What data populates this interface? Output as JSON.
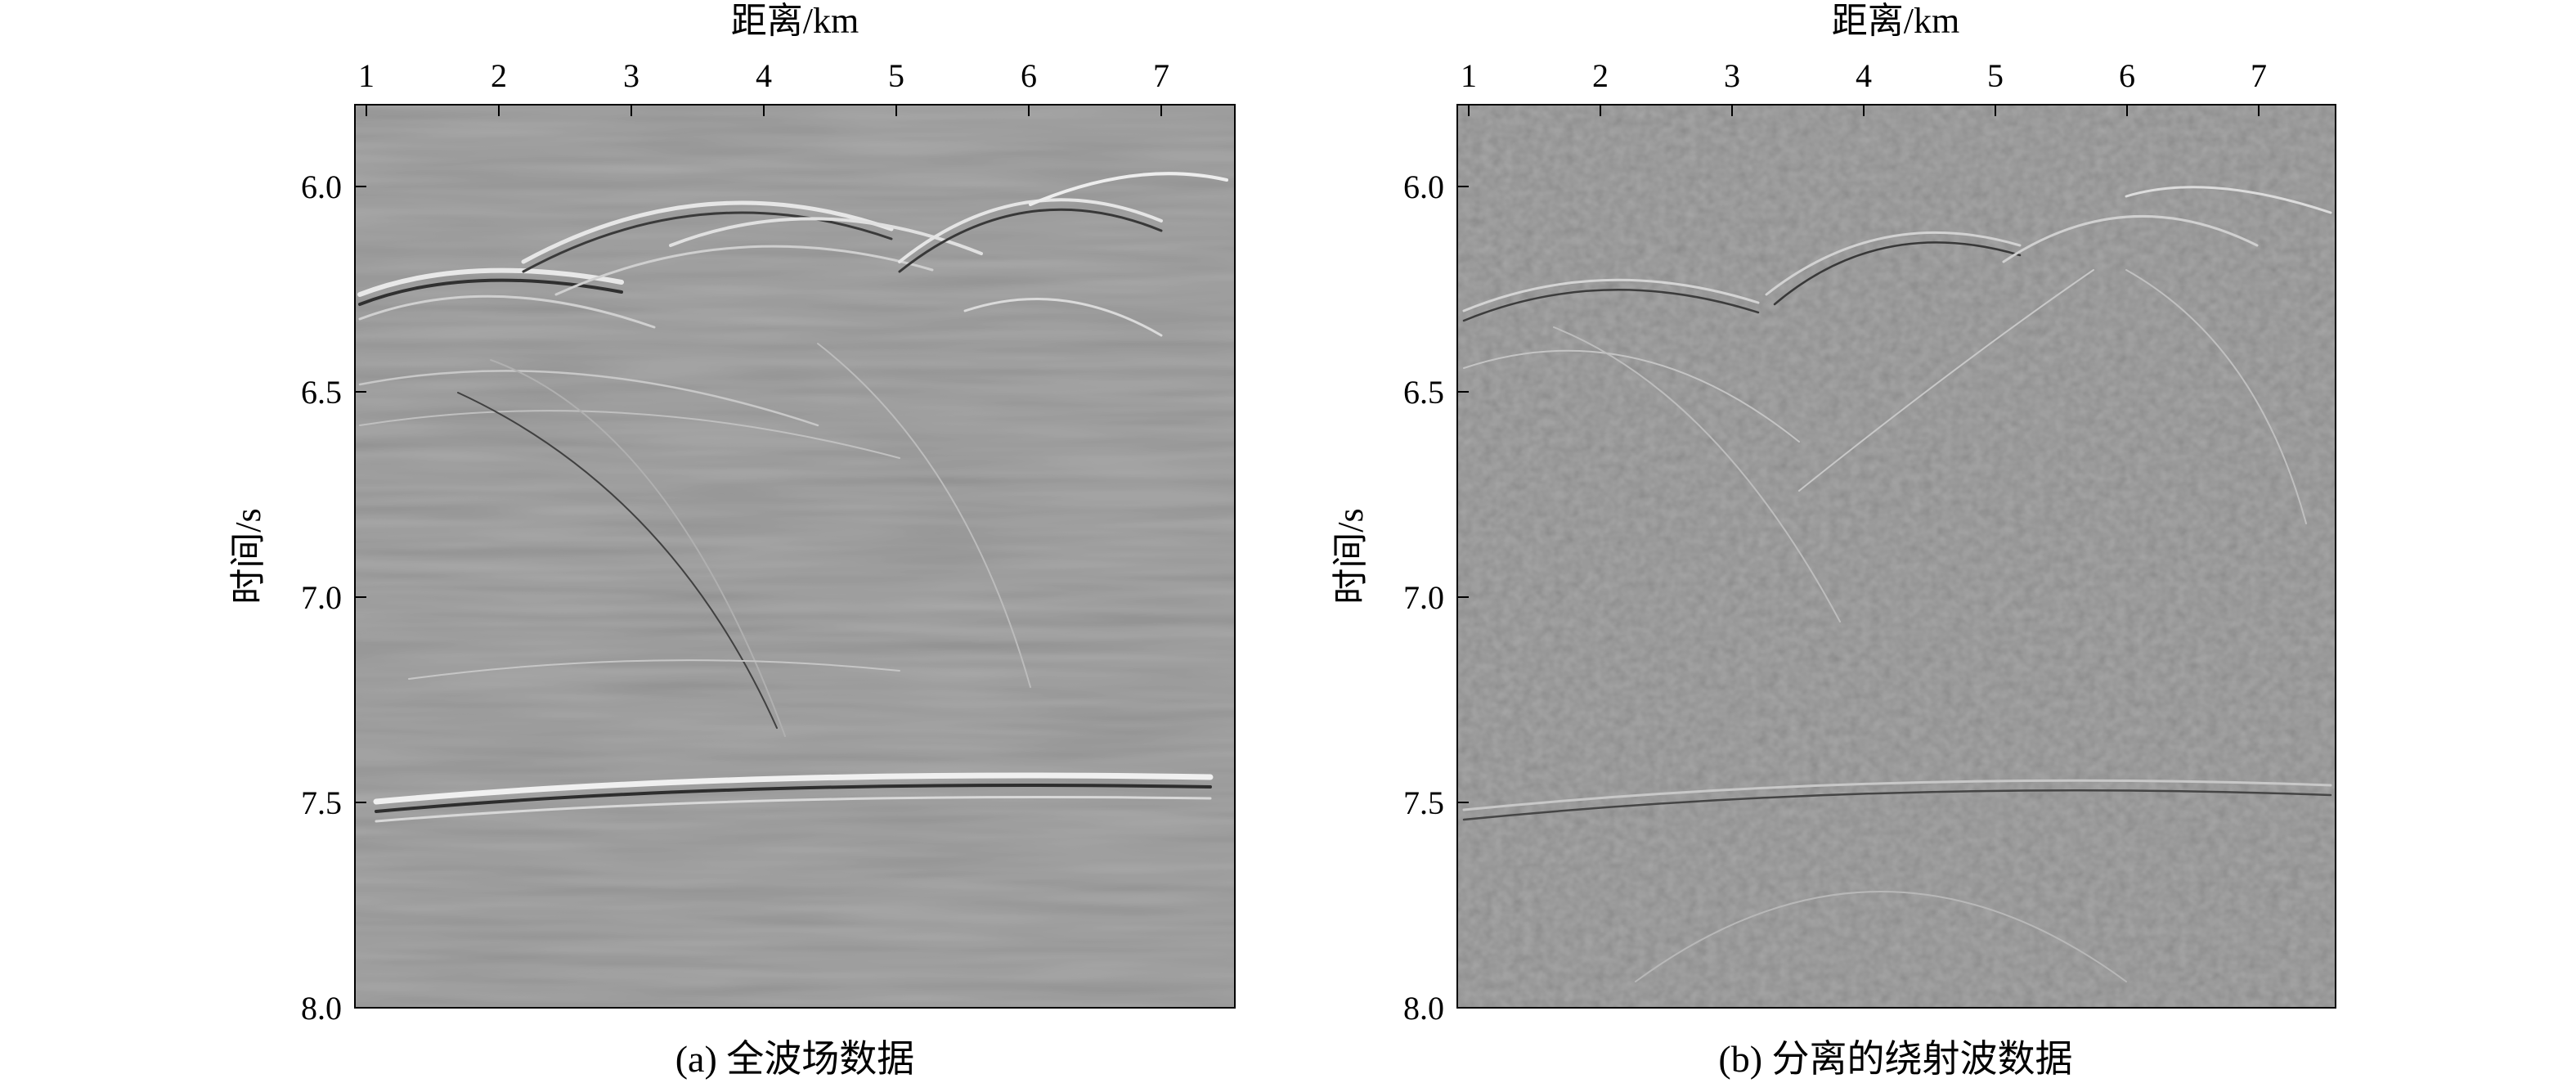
{
  "panels": [
    {
      "id": "a",
      "xlabel": "距离/km",
      "ylabel": "时间/s",
      "caption": "(a) 全波场数据",
      "x_ticks": [
        "1",
        "2",
        "3",
        "4",
        "5",
        "6",
        "7"
      ],
      "y_ticks": [
        "6.0",
        "6.5",
        "7.0",
        "7.5",
        "8.0"
      ],
      "x_range_km": [
        0.9,
        7.55
      ],
      "y_range_s": [
        5.8,
        8.0
      ]
    },
    {
      "id": "b",
      "xlabel": "距离/km",
      "ylabel": "时间/s",
      "caption": "(b) 分离的绕射波数据",
      "x_ticks": [
        "1",
        "2",
        "3",
        "4",
        "5",
        "6",
        "7"
      ],
      "y_ticks": [
        "6.0",
        "6.5",
        "7.0",
        "7.5",
        "8.0"
      ],
      "x_range_km": [
        0.9,
        7.55
      ],
      "y_range_s": [
        5.8,
        8.0
      ]
    }
  ],
  "colors": {
    "background_gray": "#7a7a7a",
    "axis": "#000000"
  }
}
